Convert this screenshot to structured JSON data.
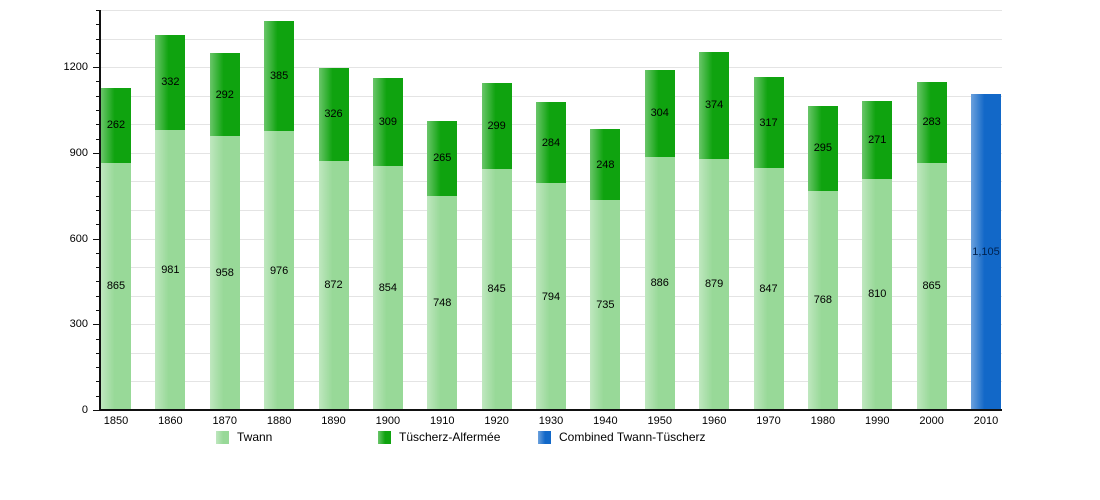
{
  "chart_data": {
    "type": "bar",
    "stacked": true,
    "title": "",
    "xlabel": "",
    "ylabel": "",
    "categories": [
      "1850",
      "1860",
      "1870",
      "1880",
      "1890",
      "1900",
      "1910",
      "1920",
      "1930",
      "1940",
      "1950",
      "1960",
      "1970",
      "1980",
      "1990",
      "2000",
      "2010"
    ],
    "series": [
      {
        "name": "Twann",
        "color": "#98d998",
        "label_color": "#000000",
        "values": [
          865,
          981,
          958,
          976,
          872,
          854,
          748,
          845,
          794,
          735,
          886,
          879,
          847,
          768,
          810,
          865,
          null
        ]
      },
      {
        "name": "Tüscherz-Alfermée",
        "color": "#0fa30f",
        "label_color": "#000000",
        "values": [
          262,
          332,
          292,
          385,
          326,
          309,
          265,
          299,
          284,
          248,
          304,
          374,
          317,
          295,
          271,
          283,
          null
        ]
      },
      {
        "name": "Combined Twann-Tüscherz",
        "color": "#1268c8",
        "label_color": "#00224f",
        "values": [
          null,
          null,
          null,
          null,
          null,
          null,
          null,
          null,
          null,
          null,
          null,
          null,
          null,
          null,
          null,
          null,
          1105
        ]
      }
    ],
    "value_label_format": "thousands-comma",
    "ylim": [
      0,
      1400
    ],
    "ytick_labels": [
      0,
      300,
      600,
      900,
      1200
    ],
    "ytick_major_step": 300,
    "ytick_minor_step": 50,
    "grid_step": 100,
    "grid_on": true,
    "legend_position": "bottom",
    "colors": {
      "grid": "#e4e4e4",
      "axis": "#111111",
      "background": "#ffffff"
    }
  }
}
